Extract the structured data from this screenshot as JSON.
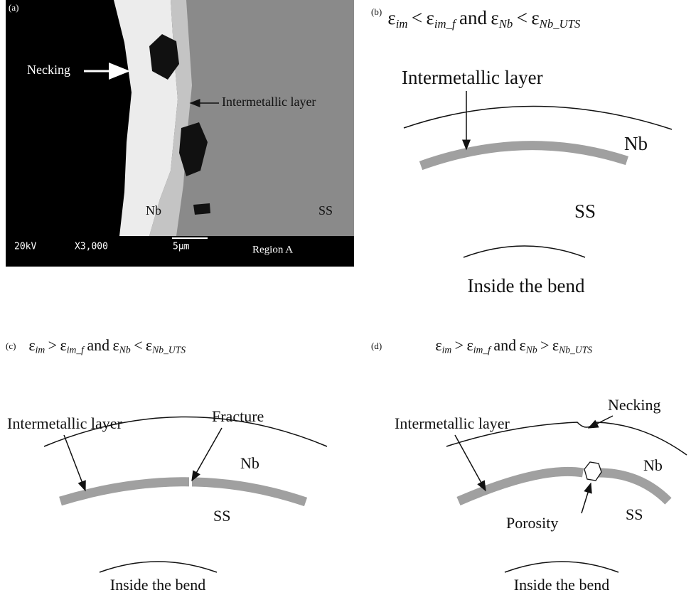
{
  "panel_a": {
    "label": "(a)",
    "necking": "Necking",
    "layer": "Intermetallic layer",
    "nb": "Nb",
    "ss": "SS",
    "voltage": "20kV",
    "magnification": "X3,000",
    "scale": "5µm",
    "region": "Region A"
  },
  "panel_b": {
    "label": "(b)",
    "condition": [
      {
        "symbol": "ε",
        "sub": "im"
      },
      "<",
      {
        "symbol": "ε",
        "sub": "im_f"
      },
      "and",
      {
        "symbol": "ε",
        "sub": "Nb"
      },
      "<",
      {
        "symbol": "ε",
        "sub": "Nb_UTS"
      }
    ],
    "layer": "Intermetallic layer",
    "nb": "Nb",
    "ss": "SS",
    "inside": "Inside the bend"
  },
  "panel_c": {
    "label": "(c)",
    "condition": [
      {
        "symbol": "ε",
        "sub": "im"
      },
      ">",
      {
        "symbol": "ε",
        "sub": "im_f"
      },
      "and",
      {
        "symbol": "ε",
        "sub": "Nb"
      },
      "<",
      {
        "symbol": "ε",
        "sub": "Nb_UTS"
      }
    ],
    "layer": "Intermetallic layer",
    "fracture": "Fracture",
    "nb": "Nb",
    "ss": "SS",
    "inside": "Inside the bend"
  },
  "panel_d": {
    "label": "(d)",
    "condition": [
      {
        "symbol": "ε",
        "sub": "im"
      },
      ">",
      {
        "symbol": "ε",
        "sub": "im_f"
      },
      "and",
      {
        "symbol": "ε",
        "sub": "Nb"
      },
      ">",
      {
        "symbol": "ε",
        "sub": "Nb_UTS"
      }
    ],
    "layer": "Intermetallic layer",
    "necking": "Necking",
    "nb": "Nb",
    "porosity": "Porosity",
    "ss": "SS",
    "inside": "Inside the bend"
  }
}
